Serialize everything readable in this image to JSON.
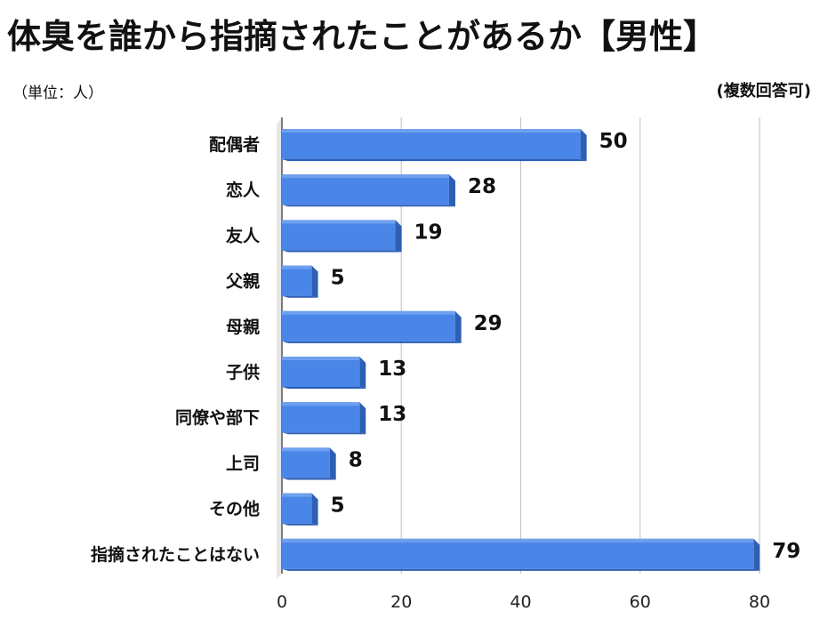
{
  "header": {
    "title": "体臭を誰から指摘されたことがあるか【男性】",
    "unit_note": "（単位：人）",
    "multi_note": "(複数回答可)"
  },
  "colors": {
    "bar_front": "#4a86e8",
    "bar_top": "#6fa0ef",
    "bar_side": "#2f5fb3",
    "grid": "#c8c8c8",
    "axis": "#555555"
  },
  "chart_data": {
    "type": "bar",
    "orientation": "horizontal",
    "categories": [
      "配偶者",
      "恋人",
      "友人",
      "父親",
      "母親",
      "子供",
      "同僚や部下",
      "上司",
      "その他",
      "指摘されたことはない"
    ],
    "values": [
      50,
      28,
      19,
      5,
      29,
      13,
      13,
      8,
      5,
      79
    ],
    "xlim": [
      0,
      80
    ],
    "xticks": [
      "0",
      "20",
      "40",
      "60",
      "80"
    ],
    "grid": true,
    "style": "3d",
    "title": "体臭を誰から指摘されたことがあるか【男性】",
    "xlabel": "",
    "ylabel": ""
  }
}
